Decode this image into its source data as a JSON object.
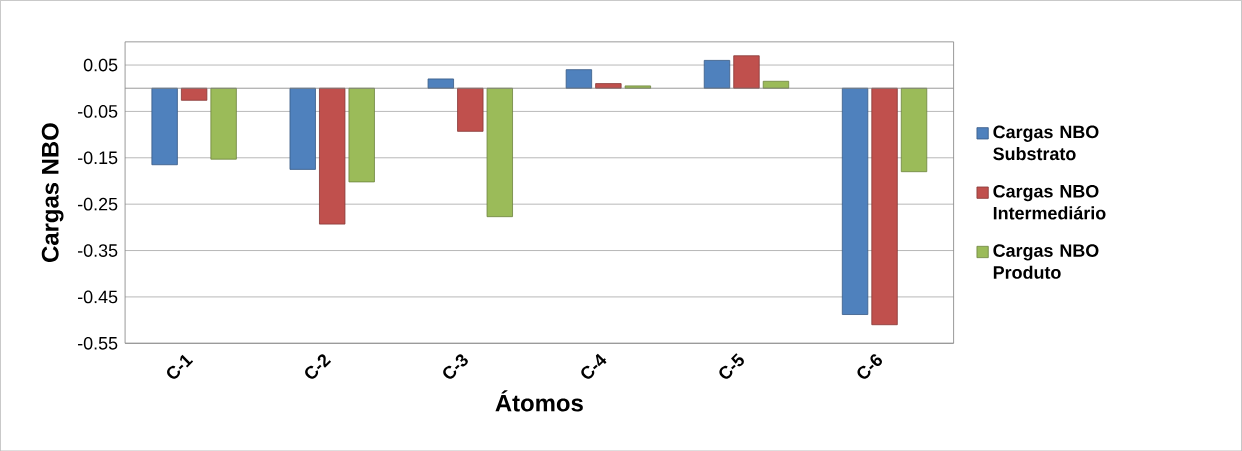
{
  "chart_data": {
    "type": "bar",
    "xlabel": "Átomos",
    "ylabel": "Cargas NBO",
    "categories": [
      "C-1",
      "C-2",
      "C-3",
      "C-4",
      "C-5",
      "C-6"
    ],
    "series": [
      {
        "name": "Cargas NBO Substrato",
        "color": "#4f81bd",
        "values": [
          -0.165,
          -0.175,
          0.02,
          0.04,
          0.06,
          -0.488
        ]
      },
      {
        "name": "Cargas NBO Intermediário",
        "color": "#c0504d",
        "values": [
          -0.026,
          -0.293,
          -0.093,
          0.01,
          0.07,
          -0.51
        ]
      },
      {
        "name": "Cargas NBO Produto",
        "color": "#9bbb59",
        "values": [
          -0.153,
          -0.202,
          -0.277,
          0.005,
          0.015,
          -0.18
        ]
      }
    ],
    "ylim": [
      -0.55,
      0.1
    ],
    "yticks": [
      0.05,
      -0.05,
      -0.15,
      -0.25,
      -0.35,
      -0.45,
      -0.55
    ],
    "grid": "y",
    "legend": "right"
  }
}
